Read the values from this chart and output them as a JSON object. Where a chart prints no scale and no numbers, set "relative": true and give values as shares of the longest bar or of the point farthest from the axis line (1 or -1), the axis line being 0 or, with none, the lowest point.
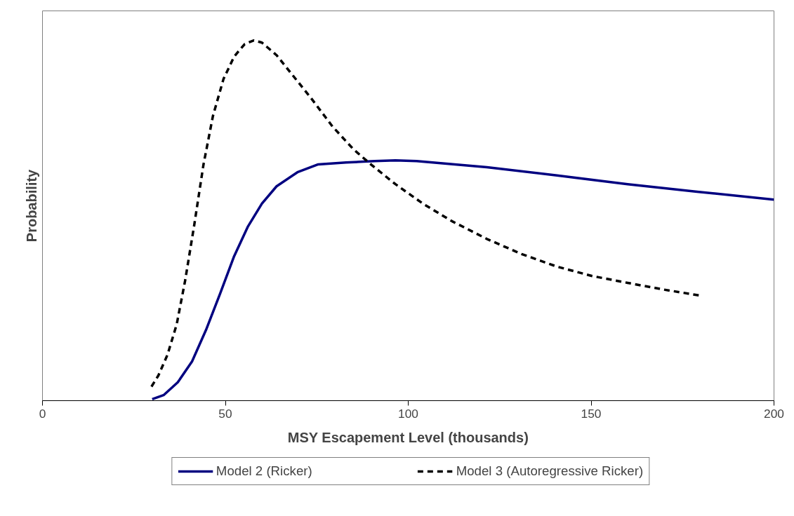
{
  "chart_data": {
    "type": "line",
    "xlabel": "MSY Escapement Level (thousands)",
    "ylabel": "Probability",
    "relative": true,
    "xlim": [
      0,
      200
    ],
    "xticks": [
      0,
      50,
      100,
      150,
      200
    ],
    "tick_labels": "x",
    "grid": false,
    "legend": "bottom",
    "marker": "none",
    "series": [
      {
        "name": "Model 2 (Ricker)",
        "color": "#000080",
        "line_style": "solid",
        "x": [
          30,
          33.2,
          37,
          40.9,
          44.7,
          48.6,
          52.4,
          56.2,
          60,
          64,
          69.7,
          75.4,
          83,
          90.8,
          96.5,
          102.3,
          121.5,
          140.7,
          160,
          179,
          200
        ],
        "values": [
          0.004,
          0.016,
          0.051,
          0.109,
          0.196,
          0.298,
          0.401,
          0.484,
          0.547,
          0.595,
          0.634,
          0.656,
          0.661,
          0.665,
          0.667,
          0.665,
          0.648,
          0.625,
          0.601,
          0.58,
          0.558
        ]
      },
      {
        "name": "Model 3 (Autoregressive Ricker)",
        "color": "#000000",
        "line_style": "dashed",
        "x": [
          29.8,
          31.7,
          34.2,
          36.7,
          39,
          41.5,
          44,
          46.6,
          49.5,
          52.4,
          55.3,
          57.8,
          60,
          64,
          67.8,
          73.5,
          79.3,
          85,
          90,
          96.5,
          104,
          112,
          121.5,
          131,
          140.7,
          150.3,
          160,
          169.5,
          179.7
        ],
        "values": [
          0.039,
          0.07,
          0.128,
          0.212,
          0.333,
          0.488,
          0.654,
          0.79,
          0.893,
          0.955,
          0.99,
          1.0,
          0.994,
          0.959,
          0.911,
          0.839,
          0.761,
          0.698,
          0.654,
          0.601,
          0.547,
          0.498,
          0.449,
          0.407,
          0.372,
          0.346,
          0.327,
          0.309,
          0.292
        ]
      }
    ]
  }
}
